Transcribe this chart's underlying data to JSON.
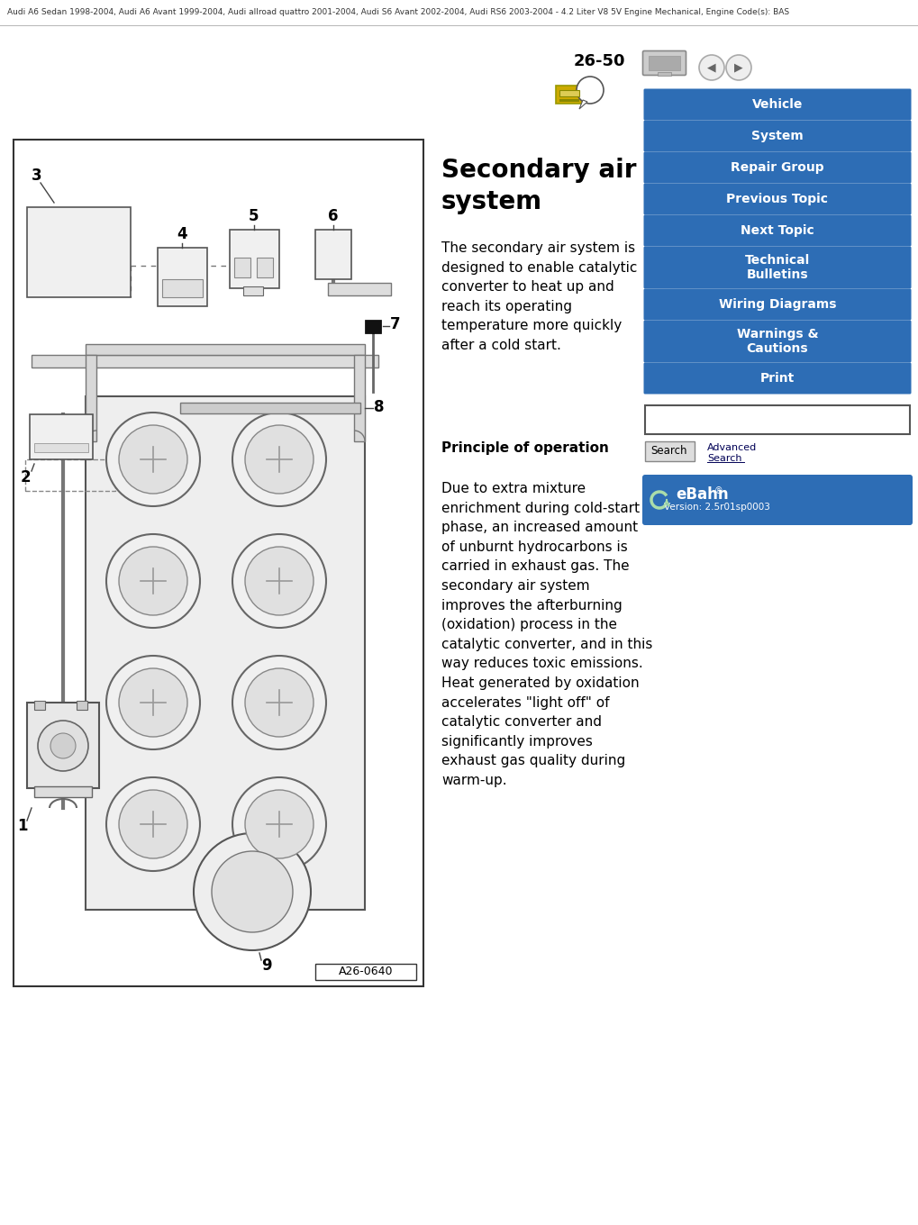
{
  "header_text": "Audi A6 Sedan 1998-2004, Audi A6 Avant 1999-2004, Audi allroad quattro 2001-2004, Audi S6 Avant 2002-2004, Audi RS6 2003-2004 - 4.2 Liter V8 5V Engine Mechanical, Engine Code(s): BAS",
  "page_num": "26-50",
  "title_line1": "Secondary air",
  "title_line2": "system",
  "description1": "The secondary air system is\ndesigned to enable catalytic\nconverter to heat up and\nreach its operating\ntemperature more quickly\nafter a cold start.",
  "section_header": "Principle of operation",
  "description2": "Due to extra mixture\nenrichment during cold-start\nphase, an increased amount\nof unburnt hydrocarbons is\ncarried in exhaust gas. The\nsecondary air system\nimproves the afterburning\n(oxidation) process in the\ncatalytic converter, and in this\nway reduces toxic emissions.\nHeat generated by oxidation\naccelerates \"light off\" of\ncatalytic converter and\nsignificantly improves\nexhaust gas quality during\nwarm-up.",
  "diagram_label": "A26-0640",
  "nav_buttons": [
    "Vehicle",
    "System",
    "Repair Group",
    "Previous Topic",
    "Next Topic",
    "Technical\nBulletins",
    "Wiring Diagrams",
    "Warnings &\nCautions",
    "Print"
  ],
  "nav_button_color": "#2D6DB5",
  "nav_button_text_color": "#ffffff",
  "bg_color": "#ffffff",
  "search_button_label": "Search",
  "ebahn_version": "Version: 2.5r01sp0003"
}
